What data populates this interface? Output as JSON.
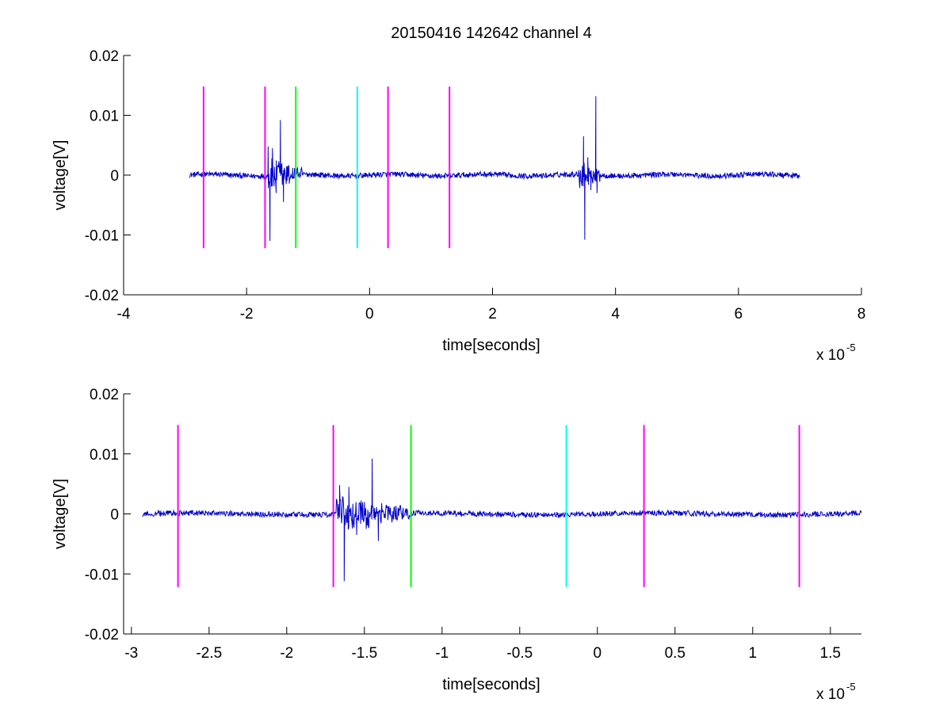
{
  "title": "20150416 142642 channel 4",
  "colors": {
    "signal": "#0000cc",
    "magenta": "#ff00ff",
    "green": "#00ff00",
    "cyan": "#00ffff",
    "axis": "#000000",
    "background": "#ffffff"
  },
  "chart_data": [
    {
      "type": "line",
      "panel": "top",
      "title": "20150416 142642 channel 4",
      "xlabel": "time[seconds]",
      "ylabel": "voltage[V]",
      "x_exponent_label": "x 10",
      "x_exponent": "-5",
      "xlim": [
        -4,
        8
      ],
      "ylim": [
        -0.02,
        0.02
      ],
      "x_ticks": [
        -4,
        -2,
        0,
        2,
        4,
        6,
        8
      ],
      "x_tick_labels": [
        "-4",
        "-2",
        "0",
        "2",
        "4",
        "6",
        "8"
      ],
      "y_ticks": [
        0.02,
        0.01,
        0,
        -0.01,
        -0.02
      ],
      "y_tick_labels": [
        "0.02",
        "0.01",
        "0",
        "-0.01",
        "-0.02"
      ],
      "grid": false,
      "signal_range": [
        -2.93,
        7.0
      ],
      "bursts": [
        {
          "start": -1.65,
          "end": -1.1,
          "peaks": [
            [
              -1.65,
              0.0048
            ],
            [
              -1.62,
              -0.011
            ],
            [
              -1.58,
              0.0045
            ],
            [
              -1.52,
              -0.003
            ],
            [
              -1.45,
              0.0092
            ],
            [
              -1.4,
              -0.0045
            ],
            [
              -1.25,
              0.0012
            ]
          ]
        },
        {
          "start": 3.4,
          "end": 3.75,
          "peaks": [
            [
              3.48,
              0.0065
            ],
            [
              3.5,
              -0.0108
            ],
            [
              3.55,
              0.003
            ],
            [
              3.6,
              -0.0025
            ],
            [
              3.68,
              0.0132
            ],
            [
              3.7,
              -0.003
            ]
          ]
        }
      ],
      "markers": [
        {
          "x": -2.7,
          "color": "magenta",
          "ymin": -0.0122,
          "ymax": 0.0148
        },
        {
          "x": -1.7,
          "color": "magenta",
          "ymin": -0.0122,
          "ymax": 0.0148
        },
        {
          "x": -1.2,
          "color": "green",
          "ymin": -0.0122,
          "ymax": 0.0148
        },
        {
          "x": -0.2,
          "color": "cyan",
          "ymin": -0.0122,
          "ymax": 0.0148
        },
        {
          "x": 0.3,
          "color": "magenta",
          "ymin": -0.0122,
          "ymax": 0.0148
        },
        {
          "x": 1.3,
          "color": "magenta",
          "ymin": -0.0122,
          "ymax": 0.0148
        }
      ]
    },
    {
      "type": "line",
      "panel": "bottom",
      "xlabel": "time[seconds]",
      "ylabel": "voltage[V]",
      "x_exponent_label": "x 10",
      "x_exponent": "-5",
      "xlim": [
        -3.05,
        1.7
      ],
      "ylim": [
        -0.02,
        0.02
      ],
      "x_ticks": [
        -3,
        -2.5,
        -2,
        -1.5,
        -1,
        -0.5,
        0,
        0.5,
        1,
        1.5
      ],
      "x_tick_labels": [
        "-3",
        "-2.5",
        "-2",
        "-1.5",
        "-1",
        "-0.5",
        "0",
        "0.5",
        "1",
        "1.5"
      ],
      "y_ticks": [
        0.02,
        0.01,
        0,
        -0.01,
        -0.02
      ],
      "y_tick_labels": [
        "0.02",
        "0.01",
        "0",
        "-0.01",
        "-0.02"
      ],
      "grid": false,
      "signal_range": [
        -2.93,
        1.7
      ],
      "bursts": [
        {
          "start": -1.68,
          "end": -1.2,
          "peaks": [
            [
              -1.66,
              0.0048
            ],
            [
              -1.63,
              -0.0112
            ],
            [
              -1.6,
              0.0045
            ],
            [
              -1.55,
              -0.0035
            ],
            [
              -1.5,
              0.002
            ],
            [
              -1.45,
              0.0092
            ],
            [
              -1.41,
              -0.0045
            ],
            [
              -1.35,
              0.0012
            ],
            [
              -1.25,
              0.001
            ]
          ]
        }
      ],
      "markers": [
        {
          "x": -2.7,
          "color": "magenta",
          "ymin": -0.0122,
          "ymax": 0.0148
        },
        {
          "x": -1.7,
          "color": "magenta",
          "ymin": -0.0122,
          "ymax": 0.0148
        },
        {
          "x": -1.2,
          "color": "green",
          "ymin": -0.0122,
          "ymax": 0.0148
        },
        {
          "x": -0.2,
          "color": "cyan",
          "ymin": -0.0122,
          "ymax": 0.0148
        },
        {
          "x": 0.3,
          "color": "magenta",
          "ymin": -0.0122,
          "ymax": 0.0148
        },
        {
          "x": 1.3,
          "color": "magenta",
          "ymin": -0.0122,
          "ymax": 0.0148
        }
      ]
    }
  ]
}
